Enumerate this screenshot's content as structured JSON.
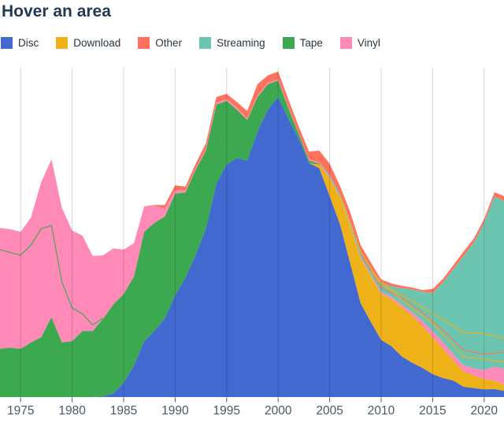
{
  "title": "Hover an area",
  "legend": {
    "items": [
      {
        "label": "Disc",
        "color": "#4269d0"
      },
      {
        "label": "Download",
        "color": "#efb118"
      },
      {
        "label": "Other",
        "color": "#ff725c"
      },
      {
        "label": "Streaming",
        "color": "#6cc5b0"
      },
      {
        "label": "Tape",
        "color": "#3ca951"
      },
      {
        "label": "Vinyl",
        "color": "#ff8ab7"
      }
    ]
  },
  "colors": {
    "title_text": "#1f3a52",
    "legend_text": "#2a3440",
    "axis_label": "#4b5866",
    "tick_mark": "#4b5866",
    "gridline": "rgba(0,0,0,0.16)",
    "background": "#ffffff"
  },
  "chart_data": {
    "type": "area",
    "stacked": true,
    "title": "Hover an area",
    "xlabel": "",
    "ylabel": "",
    "grid": "vertical",
    "legend_position": "top",
    "x_ticks": [
      1975,
      1980,
      1985,
      1990,
      1995,
      2000,
      2005,
      2010,
      2015,
      2020
    ],
    "xlim": [
      1973,
      2022
    ],
    "ylim": [
      0,
      25.9
    ],
    "stack_order_bottom_to_top": [
      "Disc",
      "Download",
      "Tape",
      "Vinyl",
      "Streaming",
      "Other"
    ],
    "x": [
      1973,
      1974,
      1975,
      1976,
      1977,
      1978,
      1979,
      1980,
      1981,
      1982,
      1983,
      1984,
      1985,
      1986,
      1987,
      1988,
      1989,
      1990,
      1991,
      1992,
      1993,
      1994,
      1995,
      1996,
      1997,
      1998,
      1999,
      2000,
      2001,
      2002,
      2003,
      2004,
      2005,
      2006,
      2007,
      2008,
      2009,
      2010,
      2011,
      2012,
      2013,
      2014,
      2015,
      2016,
      2017,
      2018,
      2019,
      2020,
      2021,
      2022
    ],
    "series": [
      {
        "name": "Disc",
        "color": "#4269d0",
        "values": [
          0,
          0,
          0,
          0,
          0,
          0,
          0,
          0,
          0,
          0,
          0.05,
          0.3,
          1.1,
          2.5,
          4.4,
          5.2,
          6.2,
          8.0,
          9.4,
          11.2,
          13.3,
          16.8,
          18.3,
          18.8,
          18.6,
          20.9,
          22.6,
          23.6,
          21.9,
          20.3,
          18.4,
          18.0,
          15.8,
          13.6,
          10.5,
          7.4,
          5.9,
          4.5,
          4.0,
          3.2,
          2.7,
          2.3,
          1.8,
          1.5,
          1.3,
          0.81,
          0.71,
          0.6,
          0.63,
          0.48
        ]
      },
      {
        "name": "Download",
        "color": "#efb118",
        "values": [
          0,
          0,
          0,
          0,
          0,
          0,
          0,
          0,
          0,
          0,
          0,
          0,
          0,
          0,
          0,
          0,
          0,
          0,
          0,
          0,
          0,
          0,
          0,
          0,
          0,
          0,
          0,
          0,
          0,
          0,
          0,
          0.3,
          1.4,
          2.1,
          2.9,
          3.5,
          3.6,
          3.6,
          3.7,
          3.85,
          3.7,
          3.3,
          2.9,
          2.3,
          1.6,
          1.2,
          0.98,
          0.8,
          0.64,
          0.5
        ]
      },
      {
        "name": "Other",
        "color": "#ff725c",
        "values": [
          0,
          0,
          0,
          0,
          0,
          0,
          0,
          0,
          0,
          0,
          0,
          0,
          0,
          0,
          0,
          0.05,
          0.3,
          0.4,
          0.3,
          0.35,
          0.45,
          0.45,
          0.42,
          0.45,
          0.6,
          0.9,
          0.6,
          0.6,
          0.6,
          0.5,
          0.62,
          0.95,
          0.9,
          0.65,
          0.7,
          0.45,
          0.4,
          0.3,
          0.2,
          0.18,
          0.15,
          0.12,
          0.3,
          0.27,
          0.3,
          0.34,
          0.32,
          0.3,
          0.32,
          0.38
        ]
      },
      {
        "name": "Streaming",
        "color": "#6cc5b0",
        "values": [
          0,
          0,
          0,
          0,
          0,
          0,
          0,
          0,
          0,
          0,
          0,
          0,
          0,
          0,
          0,
          0,
          0,
          0,
          0,
          0,
          0,
          0,
          0,
          0,
          0,
          0,
          0,
          0,
          0,
          0,
          0,
          0,
          0.15,
          0.2,
          0.35,
          0.5,
          0.55,
          0.7,
          0.85,
          1.3,
          1.8,
          2.3,
          3.0,
          4.7,
          6.7,
          8.6,
          9.9,
          11.6,
          13.4,
          13.2
        ]
      },
      {
        "name": "Tape",
        "color": "#3ca951",
        "values": [
          3.8,
          3.9,
          3.8,
          4.3,
          4.7,
          6.3,
          4.3,
          4.4,
          5.2,
          5.2,
          6.1,
          7.0,
          7.0,
          7.0,
          8.6,
          8.5,
          8.0,
          8.0,
          6.7,
          6.7,
          6.1,
          6.2,
          5.0,
          3.8,
          3.2,
          2.7,
          2.0,
          1.3,
          0.8,
          0.4,
          0.2,
          0.05,
          0.02,
          0,
          0,
          0,
          0,
          0,
          0,
          0,
          0,
          0,
          0,
          0,
          0,
          0,
          0,
          0,
          0,
          0
        ]
      },
      {
        "name": "Vinyl",
        "color": "#ff8ab7",
        "values": [
          9.5,
          9.3,
          9.2,
          9.8,
          12.2,
          12.4,
          10.6,
          8.7,
          7.5,
          5.9,
          5.0,
          4.4,
          3.5,
          2.6,
          2.0,
          1.35,
          0.6,
          0.25,
          0.15,
          0.12,
          0.12,
          0.15,
          0.13,
          0.15,
          0.1,
          0.11,
          0.1,
          0.1,
          0.1,
          0.07,
          0.08,
          0.09,
          0.08,
          0.06,
          0.08,
          0.11,
          0.13,
          0.16,
          0.18,
          0.22,
          0.27,
          0.39,
          0.5,
          0.52,
          0.47,
          0.49,
          0.57,
          0.71,
          1.12,
          1.22
        ]
      }
    ],
    "sliver_lines": [
      {
        "name": "tape-8track-boundary",
        "color": "#3ca951",
        "within": "Vinyl",
        "points": [
          [
            1973,
            0.82
          ],
          [
            1975,
            0.8
          ],
          [
            1976,
            0.78
          ],
          [
            1977,
            0.7
          ],
          [
            1978,
            0.58
          ],
          [
            1979,
            0.45
          ],
          [
            1980,
            0.3
          ],
          [
            1981,
            0.18
          ],
          [
            1982,
            0.08
          ],
          [
            1983,
            0.01
          ]
        ]
      },
      {
        "name": "download-sliver-upper",
        "color": "#efb118",
        "within": "Streaming",
        "points": [
          [
            2006,
            0.95
          ],
          [
            2008,
            0.88
          ],
          [
            2010,
            0.78
          ],
          [
            2012,
            0.6
          ],
          [
            2014,
            0.48
          ],
          [
            2016,
            0.37
          ],
          [
            2018,
            0.3
          ],
          [
            2020,
            0.25
          ],
          [
            2022,
            0.18
          ]
        ]
      },
      {
        "name": "other-video-sliver",
        "color": "#ff725c",
        "within": "Streaming",
        "points": [
          [
            2008,
            0.55
          ],
          [
            2010,
            0.5
          ],
          [
            2012,
            0.4
          ],
          [
            2014,
            0.3
          ],
          [
            2016,
            0.2
          ],
          [
            2018,
            0.14
          ],
          [
            2020,
            0.11
          ],
          [
            2022,
            0.1
          ]
        ]
      },
      {
        "name": "download-sliver-lower",
        "color": "#efb118",
        "within": "Streaming",
        "points": [
          [
            2009,
            0.4
          ],
          [
            2012,
            0.3
          ],
          [
            2015,
            0.2
          ],
          [
            2018,
            0.08
          ],
          [
            2022,
            0.04
          ]
        ]
      }
    ]
  }
}
